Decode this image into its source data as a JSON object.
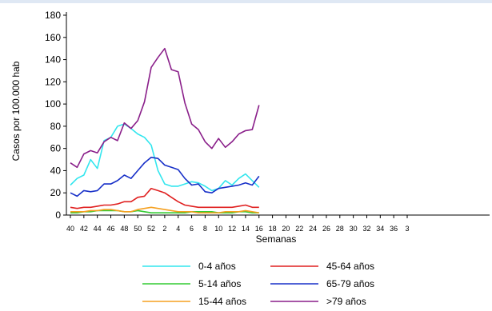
{
  "chart_data": {
    "type": "line",
    "title": "",
    "xlabel": "Semanas",
    "ylabel": "Casos por 100.000 hab",
    "ylim": [
      0,
      180
    ],
    "yticks": [
      "0",
      "20",
      "40",
      "60",
      "80",
      "100",
      "120",
      "140",
      "160",
      "180"
    ],
    "xticks": [
      "40",
      "42",
      "44",
      "46",
      "48",
      "50",
      "52",
      "2",
      "4",
      "6",
      "8",
      "10",
      "12",
      "14",
      "16",
      "18",
      "20",
      "22",
      "24",
      "26",
      "28",
      "30",
      "32",
      "34",
      "36",
      "3"
    ],
    "x": [
      "40",
      "41",
      "42",
      "43",
      "44",
      "45",
      "46",
      "47",
      "48",
      "49",
      "50",
      "51",
      "52",
      "1",
      "2",
      "3",
      "4",
      "5",
      "6",
      "7",
      "8",
      "9",
      "10",
      "11",
      "12",
      "13",
      "14",
      "15",
      "16"
    ],
    "grid": false,
    "legend_position": "bottom",
    "series": [
      {
        "name": "0-4 años",
        "color": "#33e6ee",
        "values": [
          27,
          33,
          36,
          50,
          42,
          67,
          70,
          80,
          82,
          78,
          73,
          70,
          63,
          40,
          28,
          26,
          26,
          28,
          30,
          29,
          26,
          22,
          24,
          31,
          27,
          33,
          37,
          31,
          25
        ]
      },
      {
        "name": "5-14 años",
        "color": "#33cc33",
        "values": [
          2,
          2,
          3,
          3,
          4,
          4,
          4,
          4,
          3,
          3,
          4,
          3,
          2,
          2,
          2,
          2,
          2,
          2,
          3,
          3,
          3,
          3,
          2,
          2,
          2,
          3,
          3,
          2,
          2
        ]
      },
      {
        "name": "15-44 años",
        "color": "#f5a020",
        "values": [
          3,
          3,
          3,
          4,
          4,
          5,
          5,
          4,
          3,
          3,
          5,
          6,
          7,
          6,
          5,
          4,
          3,
          3,
          3,
          2,
          2,
          2,
          2,
          3,
          3,
          3,
          4,
          3,
          2
        ]
      },
      {
        "name": "45-64 años",
        "color": "#e02020",
        "values": [
          7,
          6,
          7,
          7,
          8,
          9,
          9,
          10,
          12,
          12,
          16,
          17,
          24,
          22,
          20,
          16,
          12,
          9,
          8,
          7,
          7,
          7,
          7,
          7,
          7,
          8,
          9,
          7,
          7
        ]
      },
      {
        "name": "65-79 años",
        "color": "#1830c8",
        "values": [
          20,
          17,
          22,
          21,
          22,
          28,
          28,
          31,
          36,
          33,
          40,
          47,
          52,
          51,
          45,
          43,
          41,
          33,
          27,
          28,
          21,
          20,
          24,
          25,
          26,
          27,
          29,
          27,
          35
        ]
      },
      {
        "name": ">79 años",
        "color": "#8a1f8a",
        "values": [
          47,
          43,
          55,
          58,
          56,
          66,
          70,
          67,
          83,
          78,
          85,
          102,
          133,
          142,
          150,
          131,
          129,
          101,
          82,
          77,
          66,
          60,
          69,
          61,
          66,
          73,
          76,
          77,
          99
        ]
      }
    ]
  }
}
